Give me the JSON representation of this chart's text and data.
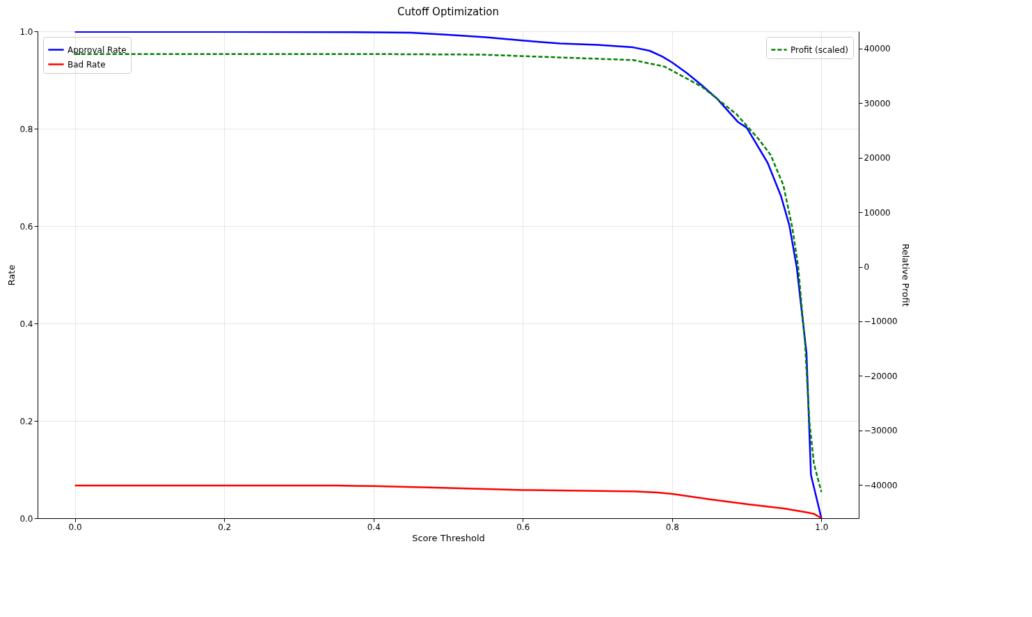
{
  "chart_data": {
    "type": "line",
    "title": "Cutoff Optimization",
    "xlabel": "Score Threshold",
    "ylabel": "Rate",
    "y2label": "Relative Profit",
    "xlim": [
      -0.05,
      1.05
    ],
    "xticks": [
      {
        "value": 0,
        "label": "0.0"
      },
      0.2,
      0.4,
      0.6,
      0.8,
      {
        "value": 1,
        "label": "1.0"
      }
    ],
    "ylim": [
      0,
      1
    ],
    "yticks": [
      {
        "value": 0,
        "label": "0.0"
      },
      0.2,
      0.4,
      0.6,
      0.8,
      {
        "value": 1,
        "label": "1.0"
      }
    ],
    "y2lim": [
      -46100,
      43170
    ],
    "y2ticks": [
      {
        "value": -40000,
        "label": "−40000"
      },
      {
        "value": -30000,
        "label": "−30000"
      },
      {
        "value": -20000,
        "label": "−20000"
      },
      {
        "value": -10000,
        "label": "−10000"
      },
      0,
      10000,
      20000,
      30000,
      40000
    ],
    "grid": true,
    "legend": "top left",
    "line_style": "solid",
    "series": [
      {
        "name": "Approval Rate",
        "color": "#0000ff",
        "x": [
          0,
          0.2,
          0.4,
          0.45,
          0.5,
          0.55,
          0.6,
          0.65,
          0.7,
          0.748,
          0.77,
          0.787,
          0.8,
          0.82,
          0.84,
          0.86,
          0.888,
          0.9,
          0.928,
          0.946,
          0.957,
          0.967,
          0.98,
          0.986,
          1.0
        ],
        "values": [
          0.999,
          0.999,
          0.998,
          0.997,
          0.993,
          0.988,
          0.981,
          0.975,
          0.972,
          0.967,
          0.96,
          0.948,
          0.936,
          0.914,
          0.889,
          0.862,
          0.814,
          0.802,
          0.73,
          0.661,
          0.602,
          0.515,
          0.34,
          0.089,
          0
        ]
      },
      {
        "name": "Bad Rate",
        "color": "#ff0000",
        "x": [
          0,
          0.35,
          0.4,
          0.5,
          0.6,
          0.7,
          0.75,
          0.78,
          0.8,
          0.85,
          0.9,
          0.95,
          0.98,
          0.99,
          1.0
        ],
        "values": [
          0.067,
          0.067,
          0.066,
          0.062,
          0.058,
          0.056,
          0.055,
          0.053,
          0.05,
          0.039,
          0.029,
          0.02,
          0.012,
          0.009,
          0
        ]
      },
      {
        "name": "Profit (scaled)",
        "color": "#008000",
        "axis": "y2",
        "line_style": "dashed",
        "x": [
          0,
          0.4,
          0.543,
          0.748,
          0.79,
          0.84,
          0.886,
          0.916,
          0.932,
          0.949,
          0.961,
          0.969,
          0.978,
          0.984,
          0.99,
          1.0
        ],
        "values": [
          39000,
          39000,
          38900,
          37900,
          36700,
          33000,
          28000,
          23400,
          20500,
          15000,
          7200,
          -100,
          -14000,
          -28500,
          -36100,
          -41300
        ]
      }
    ]
  }
}
